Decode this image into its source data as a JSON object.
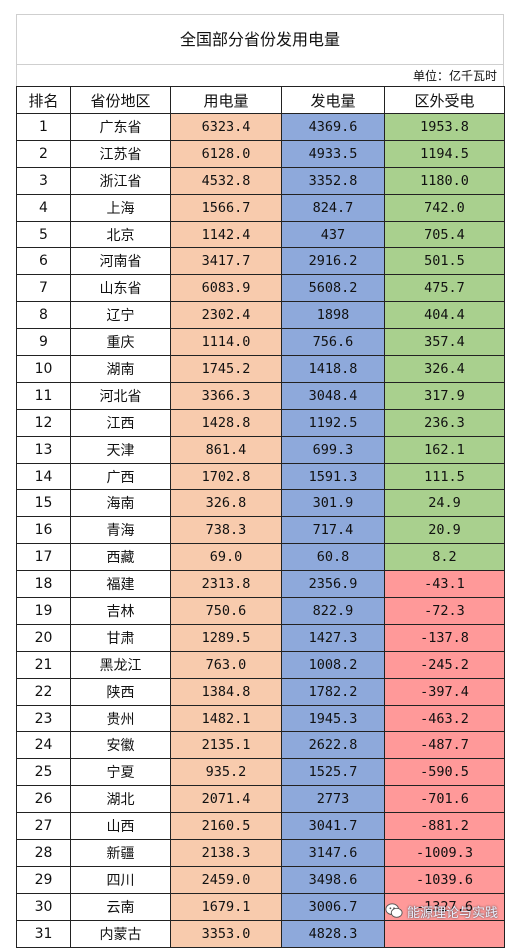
{
  "title": "全国部分省份发用电量",
  "unit": "单位：亿千瓦时",
  "headers": [
    "排名",
    "省份地区",
    "用电量",
    "发电量",
    "区外受电"
  ],
  "colors": {
    "usage_bg": "#f8cbad",
    "generation_bg": "#8ea9db",
    "net_positive_bg": "#a9d08e",
    "net_negative_bg": "#ff9999"
  },
  "rows": [
    {
      "rank": "1",
      "province": "广东省",
      "usage": "6323.4",
      "generation": "4369.6",
      "net": "1953.8",
      "net_sign": "positive"
    },
    {
      "rank": "2",
      "province": "江苏省",
      "usage": "6128.0",
      "generation": "4933.5",
      "net": "1194.5",
      "net_sign": "positive"
    },
    {
      "rank": "3",
      "province": "浙江省",
      "usage": "4532.8",
      "generation": "3352.8",
      "net": "1180.0",
      "net_sign": "positive"
    },
    {
      "rank": "4",
      "province": "上海",
      "usage": "1566.7",
      "generation": "824.7",
      "net": "742.0",
      "net_sign": "positive"
    },
    {
      "rank": "5",
      "province": "北京",
      "usage": "1142.4",
      "generation": "437",
      "net": "705.4",
      "net_sign": "positive"
    },
    {
      "rank": "6",
      "province": "河南省",
      "usage": "3417.7",
      "generation": "2916.2",
      "net": "501.5",
      "net_sign": "positive"
    },
    {
      "rank": "7",
      "province": "山东省",
      "usage": "6083.9",
      "generation": "5608.2",
      "net": "475.7",
      "net_sign": "positive"
    },
    {
      "rank": "8",
      "province": "辽宁",
      "usage": "2302.4",
      "generation": "1898",
      "net": "404.4",
      "net_sign": "positive"
    },
    {
      "rank": "9",
      "province": "重庆",
      "usage": "1114.0",
      "generation": "756.6",
      "net": "357.4",
      "net_sign": "positive"
    },
    {
      "rank": "10",
      "province": "湖南",
      "usage": "1745.2",
      "generation": "1418.8",
      "net": "326.4",
      "net_sign": "positive"
    },
    {
      "rank": "11",
      "province": "河北省",
      "usage": "3366.3",
      "generation": "3048.4",
      "net": "317.9",
      "net_sign": "positive"
    },
    {
      "rank": "12",
      "province": "江西",
      "usage": "1428.8",
      "generation": "1192.5",
      "net": "236.3",
      "net_sign": "positive"
    },
    {
      "rank": "13",
      "province": "天津",
      "usage": "861.4",
      "generation": "699.3",
      "net": "162.1",
      "net_sign": "positive"
    },
    {
      "rank": "14",
      "province": "广西",
      "usage": "1702.8",
      "generation": "1591.3",
      "net": "111.5",
      "net_sign": "positive"
    },
    {
      "rank": "15",
      "province": "海南",
      "usage": "326.8",
      "generation": "301.9",
      "net": "24.9",
      "net_sign": "positive"
    },
    {
      "rank": "16",
      "province": "青海",
      "usage": "738.3",
      "generation": "717.4",
      "net": "20.9",
      "net_sign": "positive"
    },
    {
      "rank": "17",
      "province": "西藏",
      "usage": "69.0",
      "generation": "60.8",
      "net": "8.2",
      "net_sign": "positive"
    },
    {
      "rank": "18",
      "province": "福建",
      "usage": "2313.8",
      "generation": "2356.9",
      "net": "-43.1",
      "net_sign": "negative"
    },
    {
      "rank": "19",
      "province": "吉林",
      "usage": "750.6",
      "generation": "822.9",
      "net": "-72.3",
      "net_sign": "negative"
    },
    {
      "rank": "20",
      "province": "甘肃",
      "usage": "1289.5",
      "generation": "1427.3",
      "net": "-137.8",
      "net_sign": "negative"
    },
    {
      "rank": "21",
      "province": "黑龙江",
      "usage": "763.0",
      "generation": "1008.2",
      "net": "-245.2",
      "net_sign": "negative"
    },
    {
      "rank": "22",
      "province": "陕西",
      "usage": "1384.8",
      "generation": "1782.2",
      "net": "-397.4",
      "net_sign": "negative"
    },
    {
      "rank": "23",
      "province": "贵州",
      "usage": "1482.1",
      "generation": "1945.3",
      "net": "-463.2",
      "net_sign": "negative"
    },
    {
      "rank": "24",
      "province": "安徽",
      "usage": "2135.1",
      "generation": "2622.8",
      "net": "-487.7",
      "net_sign": "negative"
    },
    {
      "rank": "25",
      "province": "宁夏",
      "usage": "935.2",
      "generation": "1525.7",
      "net": "-590.5",
      "net_sign": "negative"
    },
    {
      "rank": "26",
      "province": "湖北",
      "usage": "2071.4",
      "generation": "2773",
      "net": "-701.6",
      "net_sign": "negative"
    },
    {
      "rank": "27",
      "province": "山西",
      "usage": "2160.5",
      "generation": "3041.7",
      "net": "-881.2",
      "net_sign": "negative"
    },
    {
      "rank": "28",
      "province": "新疆",
      "usage": "2138.3",
      "generation": "3147.6",
      "net": "-1009.3",
      "net_sign": "negative"
    },
    {
      "rank": "29",
      "province": "四川",
      "usage": "2459.0",
      "generation": "3498.6",
      "net": "-1039.6",
      "net_sign": "negative"
    },
    {
      "rank": "30",
      "province": "云南",
      "usage": "1679.1",
      "generation": "3006.7",
      "net": "-1327.6",
      "net_sign": "negative"
    },
    {
      "rank": "31",
      "province": "内蒙古",
      "usage": "3353.0",
      "generation": "4828.3",
      "net": "",
      "net_sign": "negative"
    }
  ],
  "watermark": {
    "text": "能源理论与实践",
    "icon": "wechat-icon"
  }
}
